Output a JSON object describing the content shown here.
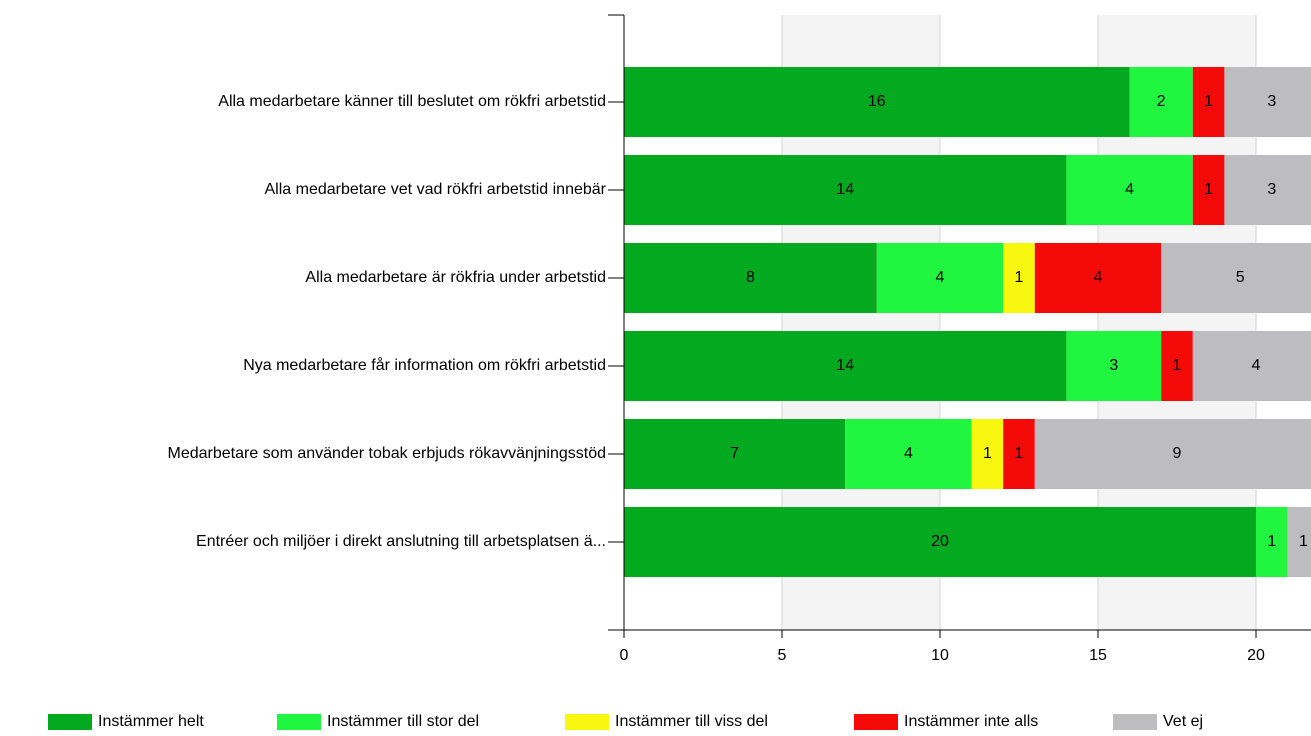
{
  "chart_data": {
    "type": "stacked-bar-horizontal",
    "categories": [
      "Alla medarbetare känner till beslutet om rökfri arbetstid",
      "Alla medarbetare vet vad rökfri arbetstid innebär",
      "Alla medarbetare är rökfria under arbetstid",
      "Nya medarbetare får information om rökfri arbetstid",
      "Medarbetare som använder tobak erbjuds rökavvänjningsstöd",
      "Entréer och miljöer i direkt anslutning till arbetsplatsen ä..."
    ],
    "series": [
      {
        "name": "Instämmer helt",
        "color": "#03a91f",
        "values": [
          16,
          14,
          8,
          14,
          7,
          20
        ]
      },
      {
        "name": "Instämmer till stor del",
        "color": "#20f53f",
        "values": [
          2,
          4,
          4,
          3,
          4,
          1
        ]
      },
      {
        "name": "Instämmer till viss del",
        "color": "#f7f70f",
        "values": [
          null,
          null,
          1,
          null,
          1,
          null
        ]
      },
      {
        "name": "Instämmer inte alls",
        "color": "#f50a0a",
        "values": [
          1,
          1,
          4,
          1,
          1,
          null
        ]
      },
      {
        "name": "Vet ej",
        "color": "#bdbdbf",
        "values": [
          3,
          3,
          5,
          4,
          9,
          1
        ]
      }
    ],
    "xlim": [
      0,
      21.74
    ],
    "xticks": [
      0,
      5,
      10,
      15,
      20
    ],
    "grid": true,
    "legend": "bottom"
  }
}
